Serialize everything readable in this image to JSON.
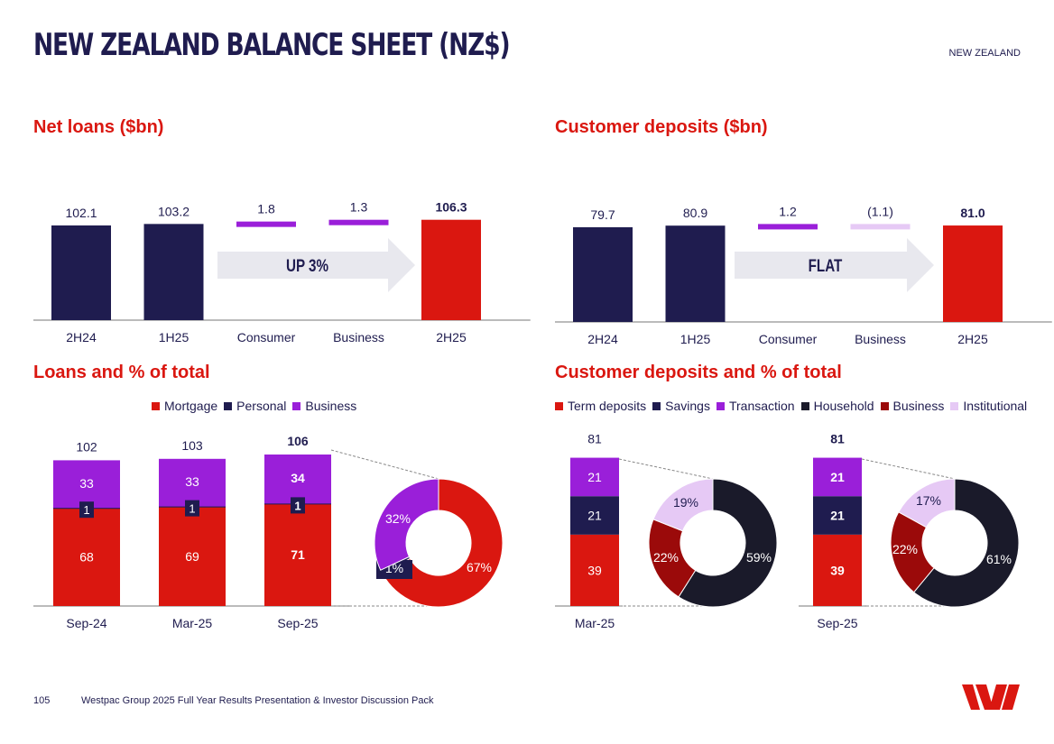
{
  "header": {
    "title": "NEW ZEALAND BALANCE SHEET (NZ$)",
    "region": "NEW ZEALAND"
  },
  "footer": {
    "page": "105",
    "text": "Westpac Group 2025 Full Year Results Presentation & Investor Discussion Pack"
  },
  "colors": {
    "navy": "#1f1c4f",
    "red": "#da1710",
    "purple": "#9a1fd9",
    "lilac": "#e6c9f5",
    "dark": "#1a1a2a",
    "maroon": "#9b0a0a",
    "grey": "#e8e8ee"
  },
  "icons": {
    "logo": "westpac-w-logo"
  },
  "chart_data": [
    {
      "id": "net_loans",
      "type": "waterfall",
      "title": "Net loans ($bn)",
      "categories": [
        "2H24",
        "1H25",
        "Consumer",
        "Business",
        "2H25"
      ],
      "values": [
        102.1,
        103.2,
        1.8,
        1.3,
        106.3
      ],
      "labels": [
        "102.1",
        "103.2",
        "1.8",
        "1.3",
        "106.3"
      ],
      "kinds": [
        "base",
        "base",
        "delta",
        "delta",
        "total"
      ],
      "annotation": "UP 3%"
    },
    {
      "id": "customer_deposits",
      "type": "waterfall",
      "title": "Customer deposits ($bn)",
      "categories": [
        "2H24",
        "1H25",
        "Consumer",
        "Business",
        "2H25"
      ],
      "values": [
        79.7,
        80.9,
        1.2,
        -1.1,
        81.0
      ],
      "labels": [
        "79.7",
        "80.9",
        "1.2",
        "(1.1)",
        "81.0"
      ],
      "kinds": [
        "base",
        "base",
        "delta",
        "delta",
        "total"
      ],
      "annotation": "FLAT"
    },
    {
      "id": "loans_pct",
      "type": "bar",
      "stacked": true,
      "title": "Loans and % of total",
      "legend": [
        "Mortgage",
        "Personal",
        "Business"
      ],
      "categories": [
        "Sep-24",
        "Mar-25",
        "Sep-25"
      ],
      "totals": [
        "102",
        "103",
        "106"
      ],
      "series": [
        {
          "name": "Mortgage",
          "values": [
            68,
            69,
            71
          ]
        },
        {
          "name": "Personal",
          "values": [
            1,
            1,
            1
          ]
        },
        {
          "name": "Business",
          "values": [
            33,
            33,
            34
          ]
        }
      ],
      "donut": {
        "period": "Sep-25",
        "slices": [
          {
            "name": "Mortgage",
            "value": 67,
            "label": "67%"
          },
          {
            "name": "Personal",
            "value": 1,
            "label": "1%"
          },
          {
            "name": "Business",
            "value": 32,
            "label": "32%"
          }
        ]
      }
    },
    {
      "id": "deposits_pct",
      "type": "bar",
      "stacked": true,
      "title": "Customer deposits and % of total",
      "legend": [
        "Term deposits",
        "Savings",
        "Transaction",
        "Household",
        "Business",
        "Institutional"
      ],
      "groups": [
        {
          "period": "Mar-25",
          "total": "81",
          "series": [
            {
              "name": "Term deposits",
              "value": 39
            },
            {
              "name": "Savings",
              "value": 21
            },
            {
              "name": "Transaction",
              "value": 21
            }
          ],
          "donut": [
            {
              "name": "Household",
              "value": 59,
              "label": "59%"
            },
            {
              "name": "Business",
              "value": 22,
              "label": "22%"
            },
            {
              "name": "Institutional",
              "value": 19,
              "label": "19%"
            }
          ]
        },
        {
          "period": "Sep-25",
          "total": "81",
          "series": [
            {
              "name": "Term deposits",
              "value": 39
            },
            {
              "name": "Savings",
              "value": 21
            },
            {
              "name": "Transaction",
              "value": 21
            }
          ],
          "donut": [
            {
              "name": "Household",
              "value": 61,
              "label": "61%"
            },
            {
              "name": "Business",
              "value": 22,
              "label": "22%"
            },
            {
              "name": "Institutional",
              "value": 17,
              "label": "17%"
            }
          ]
        }
      ]
    }
  ]
}
